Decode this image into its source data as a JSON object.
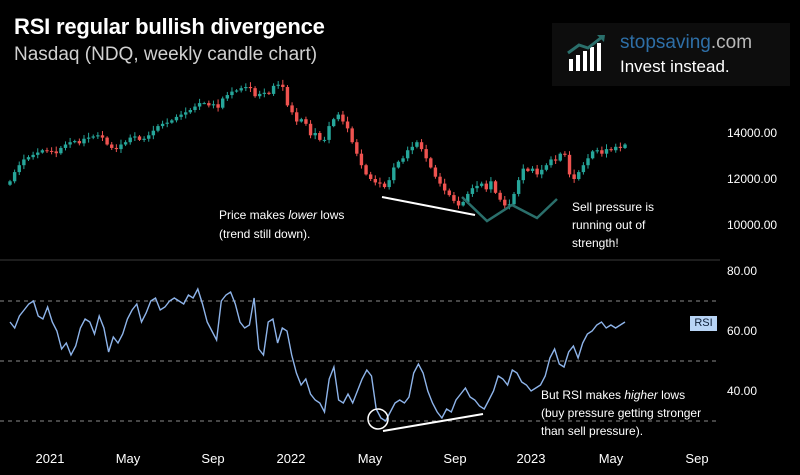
{
  "title": "RSI regular bullish divergence",
  "subtitle": "Nasdaq (NDQ, weekly candle chart)",
  "brand": {
    "name_main": "stopsaving",
    "name_suffix": ".com",
    "tagline": "Invest instead.",
    "logo_icon": "bar-chart-growth-icon"
  },
  "colors": {
    "background": "#000000",
    "bull": "#26a69a",
    "bear": "#ef5350",
    "rsi_line": "#8eb4ea",
    "annotation_teal": "#2a6f6b",
    "annotation_white": "#ffffff",
    "rsi_tag_bg": "#b8d4f5"
  },
  "annotations": {
    "price_lower_lows_1": "Price makes",
    "price_lower_lows_em": "lower",
    "price_lower_lows_2": "lows",
    "price_lower_lows_line2": "(trend still down).",
    "sell_pressure_line1": "Sell pressure is",
    "sell_pressure_line2": "running out of",
    "sell_pressure_line3": "strength!",
    "rsi_higher_1": "But RSI makes",
    "rsi_higher_em": "higher",
    "rsi_higher_2": "lows",
    "rsi_higher_line2": "(buy pressure getting stronger",
    "rsi_higher_line3": "than sell pressure).",
    "rsi_tag": "RSI"
  },
  "chart_data": [
    {
      "type": "candlestick",
      "title": "Nasdaq (NDQ, weekly candle chart)",
      "y_ticks": [
        10000,
        12000,
        14000
      ],
      "y_tick_labels": [
        "10000.00",
        "12000.00",
        "14000.00"
      ],
      "ylim": [
        9200,
        16800
      ],
      "x_labels": [
        "2021",
        "May",
        "Sep",
        "2022",
        "May",
        "Sep",
        "2023",
        "May",
        "Sep"
      ],
      "close_series": [
        11900,
        12300,
        12600,
        12850,
        12950,
        13050,
        13150,
        13250,
        13220,
        13200,
        13120,
        13350,
        13500,
        13600,
        13650,
        13550,
        13750,
        13800,
        13850,
        13900,
        13800,
        13500,
        13350,
        13300,
        13500,
        13600,
        13800,
        13850,
        13700,
        13750,
        13900,
        14100,
        14300,
        14400,
        14450,
        14550,
        14700,
        14800,
        14900,
        15000,
        15150,
        15300,
        15300,
        15200,
        15250,
        15100,
        15500,
        15650,
        15800,
        15850,
        15950,
        16000,
        15950,
        15600,
        15700,
        15750,
        15700,
        16050,
        16100,
        16000,
        15200,
        14900,
        14500,
        14600,
        14400,
        13900,
        14000,
        13700,
        13700,
        14300,
        14600,
        14800,
        14500,
        14200,
        13600,
        13100,
        12600,
        12200,
        12000,
        11850,
        11800,
        11650,
        11950,
        12500,
        12750,
        12900,
        13250,
        13400,
        13600,
        13300,
        12900,
        12500,
        12100,
        11800,
        11500,
        11300,
        11050,
        10850,
        11000,
        11350,
        11600,
        11700,
        11800,
        11550,
        11900,
        11400,
        11100,
        10850,
        10900,
        11350,
        11950,
        12450,
        12350,
        12450,
        12200,
        12400,
        12600,
        12850,
        12800,
        13100,
        13050,
        12200,
        12000,
        12300,
        12600,
        12900,
        13200,
        13250,
        13100,
        13300,
        13250,
        13400,
        13350,
        13500
      ]
    },
    {
      "type": "line",
      "title": "RSI",
      "y_ticks": [
        40,
        60,
        80
      ],
      "y_tick_labels": [
        "40.00",
        "60.00",
        "80.00"
      ],
      "dashed_levels": [
        30,
        50,
        70
      ],
      "ylim": [
        25,
        85
      ],
      "series": [
        {
          "name": "RSI",
          "values": [
            63,
            61,
            65,
            67,
            69,
            70,
            65,
            64,
            68,
            63,
            60,
            54,
            56,
            52,
            55,
            61,
            64,
            63,
            59,
            65,
            61,
            53,
            58,
            56,
            59,
            64,
            67,
            69,
            63,
            66,
            70,
            71,
            67,
            68,
            70,
            71,
            70,
            69,
            72,
            71,
            74,
            69,
            63,
            60,
            57,
            70,
            72,
            73,
            69,
            63,
            61,
            62,
            71,
            54,
            52,
            63,
            64,
            56,
            61,
            60,
            52,
            46,
            42,
            44,
            39,
            37,
            36,
            33,
            44,
            48,
            37,
            36,
            39,
            36,
            40,
            44,
            47,
            45,
            34,
            31,
            30,
            33,
            36,
            37,
            36,
            38,
            46,
            49,
            46,
            40,
            36,
            33,
            31,
            34,
            33,
            37,
            39,
            41,
            38,
            37,
            35,
            34,
            37,
            40,
            45,
            44,
            42,
            47,
            46,
            43,
            42,
            40,
            41,
            42,
            45,
            51,
            54,
            49,
            48,
            53,
            55,
            51,
            56,
            59,
            60,
            62,
            63,
            61,
            62,
            61,
            62,
            63
          ]
        }
      ]
    }
  ]
}
